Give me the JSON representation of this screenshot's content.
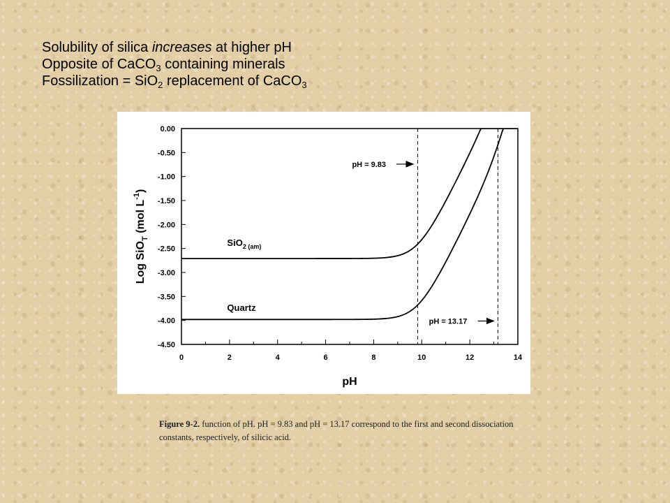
{
  "slide": {
    "line1": {
      "before": "Solubility of silica ",
      "emph": "increases",
      "after": " at higher pH"
    },
    "line2": {
      "before": "Opposite of CaCO",
      "sub": "3",
      "after": " containing minerals"
    },
    "line3": {
      "before": "Fossilization = SiO",
      "sub1": "2",
      "mid": " replacement of CaCO",
      "sub2": "3"
    }
  },
  "chart_data": {
    "type": "line",
    "xlabel": "pH",
    "ylabel": {
      "prefix": "Log SiO",
      "sub": "T",
      "middle": " (mol L",
      "sup": "-1",
      "suffix": ")"
    },
    "xlim": [
      0,
      14
    ],
    "ylim": [
      -4.5,
      0
    ],
    "xticks": [
      0,
      2,
      4,
      6,
      8,
      10,
      12,
      14
    ],
    "xtick_labels": [
      "0",
      "2",
      "4",
      "6",
      "8",
      "10",
      "12",
      "14"
    ],
    "yticks": [
      0,
      -0.5,
      -1,
      -1.5,
      -2,
      -2.5,
      -3,
      -3.5,
      -4,
      -4.5
    ],
    "ytick_labels": [
      "0.00",
      "-0.50",
      "-1.00",
      "-1.50",
      "-2.00",
      "-2.50",
      "-3.00",
      "-3.50",
      "-4.00",
      "-4.50"
    ],
    "grid": false,
    "series": [
      {
        "name": "SiO2 (am)",
        "label_main": "SiO",
        "label_sub": "2 (am)",
        "logK": -2.71,
        "label_at": [
          1.9,
          -2.45
        ],
        "color": "#000000"
      },
      {
        "name": "Quartz",
        "label_main": "Quartz",
        "label_sub": "",
        "logK": -3.98,
        "label_at": [
          1.9,
          -3.8
        ],
        "color": "#000000"
      }
    ],
    "pKa": [
      9.83,
      13.17
    ],
    "annotations": [
      {
        "text": "pH = 9.83",
        "text_at": [
          7.1,
          -0.8
        ],
        "arrow_to": 9.65
      },
      {
        "text": "pH = 13.17",
        "text_at": [
          10.3,
          -4.07
        ],
        "arrow_to": 13.0
      }
    ]
  },
  "caption": {
    "bold": "Figure 9-2.",
    "text": " function of pH. pH = 9.83 and pH = 13.17 correspond to the first and second dissociation constants, respectively, of silicic acid."
  }
}
